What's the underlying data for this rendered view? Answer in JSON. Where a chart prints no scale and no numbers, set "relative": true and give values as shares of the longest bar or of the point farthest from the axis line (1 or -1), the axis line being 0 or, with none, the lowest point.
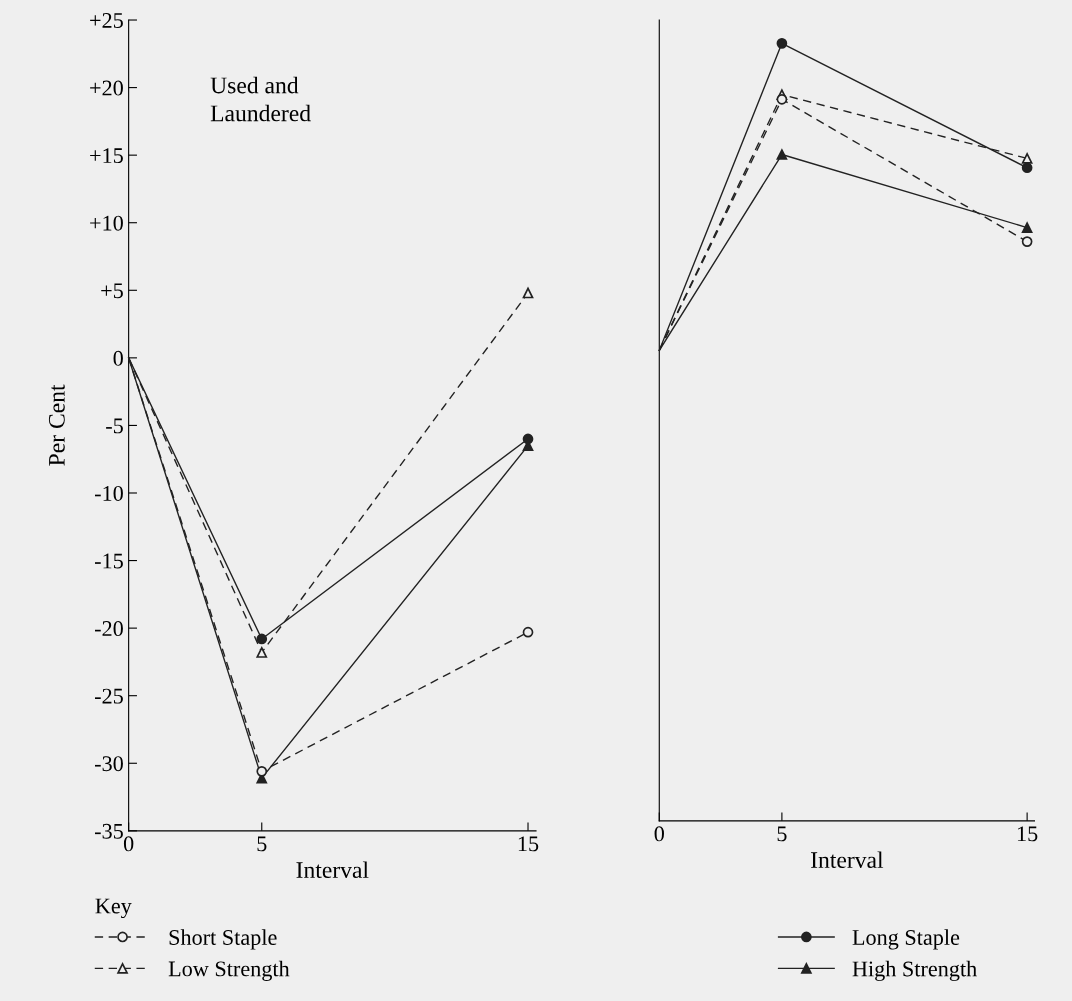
{
  "chart_data": [
    {
      "type": "line",
      "x": [
        0,
        5,
        15
      ],
      "xlim": [
        0,
        15.3
      ],
      "xticks": [
        0,
        5,
        15
      ],
      "ylim": [
        -35,
        25
      ],
      "yticks": [
        {
          "value": 25,
          "label": "+25"
        },
        {
          "value": 20,
          "label": "+20"
        },
        {
          "value": 15,
          "label": "+15"
        },
        {
          "value": 10,
          "label": "+10"
        },
        {
          "value": 5,
          "label": "+5"
        },
        0,
        {
          "value": -5,
          "label": "-5"
        },
        {
          "value": -10,
          "label": "-10"
        },
        {
          "value": -15,
          "label": "-15"
        },
        {
          "value": -20,
          "label": "-20"
        },
        {
          "value": -25,
          "label": "-25"
        },
        {
          "value": -30,
          "label": "-30"
        },
        {
          "value": -35,
          "label": "-35"
        }
      ],
      "xlabel": "Interval",
      "ylabel": "Per Cent",
      "annotations": [
        "Used and\nLaundered"
      ],
      "legend": "bottom",
      "legend_title": "Key",
      "grid": false,
      "series": [
        {
          "name": "Short Staple",
          "color": "#222222",
          "marker": "circle",
          "line_style": "dashed",
          "values": [
            0,
            -30.6,
            -20.3
          ]
        },
        {
          "name": "Low Strength",
          "color": "#222222",
          "marker": "triangle",
          "line_style": "dashed",
          "values": [
            0,
            -21.8,
            4.8
          ]
        },
        {
          "name": "Long Staple",
          "color": "#222222",
          "marker": "circle",
          "line_style": "solid",
          "values": [
            0,
            -20.8,
            -6
          ]
        },
        {
          "name": "High Strength",
          "color": "#222222",
          "marker": "triangle",
          "line_style": "solid",
          "values": [
            0,
            -31.1,
            -6.5
          ]
        }
      ]
    },
    {
      "type": "line",
      "x": [
        0,
        5,
        15
      ],
      "xlim": [
        0,
        15.3
      ],
      "xticks": [
        0,
        5,
        15
      ],
      "xlabel": "Interval",
      "relative": true,
      "grid": false,
      "series": [
        {
          "color": "#222222",
          "marker": "circle",
          "line_style": "dashed",
          "values": [
            0.605,
            0.928,
            0.745
          ]
        },
        {
          "color": "#222222",
          "marker": "triangle",
          "line_style": "dashed",
          "values": [
            0.605,
            0.934,
            0.852
          ]
        },
        {
          "color": "#222222",
          "marker": "circle",
          "line_style": "solid",
          "values": [
            0.605,
            1,
            0.84
          ]
        },
        {
          "color": "#222222",
          "marker": "triangle",
          "line_style": "solid",
          "values": [
            0.605,
            0.857,
            0.763
          ]
        }
      ]
    }
  ]
}
